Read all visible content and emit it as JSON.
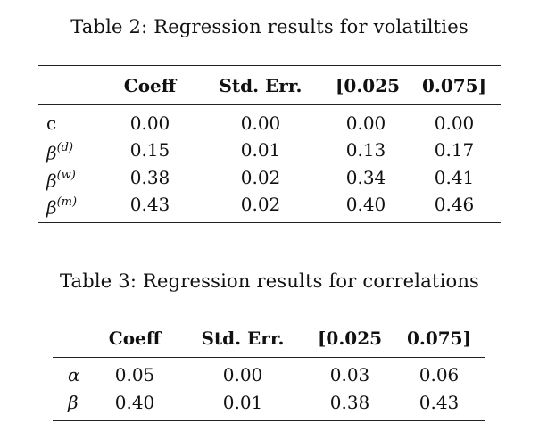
{
  "tables": [
    {
      "caption": "Table 2: Regression results for volatilties",
      "headers": [
        "Coeff",
        "Std. Err.",
        "[0.025",
        "0.075]"
      ],
      "rows": [
        {
          "label": "c",
          "values": [
            "0.00",
            "0.00",
            "0.00",
            "0.00"
          ]
        },
        {
          "label": "β",
          "sup": "(d)",
          "values": [
            "0.15",
            "0.01",
            "0.13",
            "0.17"
          ]
        },
        {
          "label": "β",
          "sup": "(w)",
          "values": [
            "0.38",
            "0.02",
            "0.34",
            "0.41"
          ]
        },
        {
          "label": "β",
          "sup": "(m)",
          "values": [
            "0.43",
            "0.02",
            "0.40",
            "0.46"
          ]
        }
      ]
    },
    {
      "caption": "Table 3: Regression results for correlations",
      "headers": [
        "Coeff",
        "Std. Err.",
        "[0.025",
        "0.075]"
      ],
      "rows": [
        {
          "label": "α",
          "values": [
            "0.05",
            "0.00",
            "0.03",
            "0.06"
          ]
        },
        {
          "label": "β",
          "values": [
            "0.40",
            "0.01",
            "0.38",
            "0.43"
          ]
        }
      ]
    }
  ]
}
